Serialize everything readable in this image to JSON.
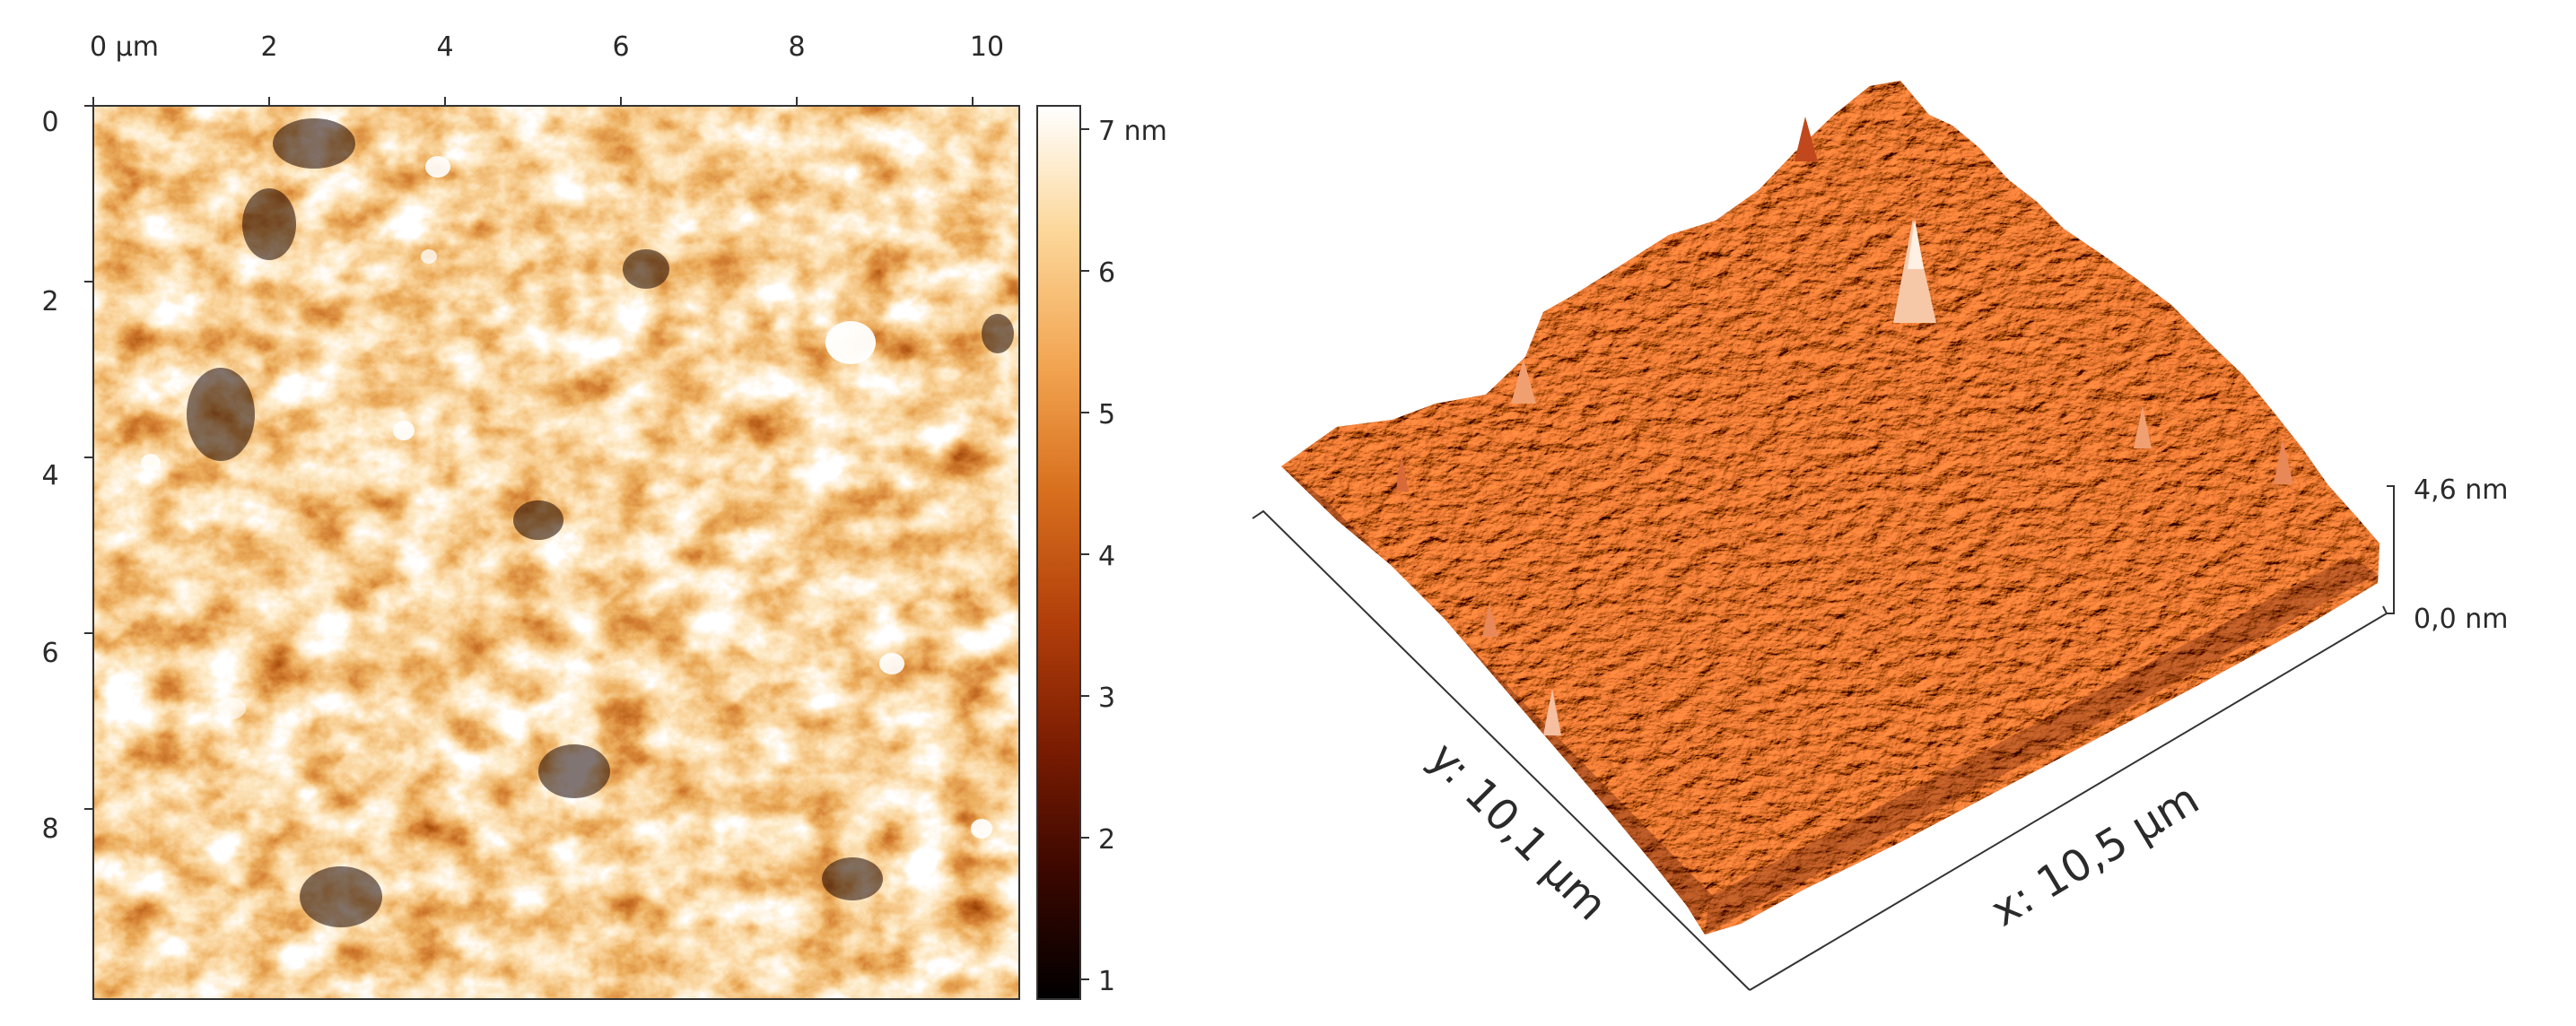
{
  "afm_2d": {
    "x_ticks": [
      "0 µm",
      "2",
      "4",
      "6",
      "8",
      "10"
    ],
    "y_ticks": [
      "0",
      "2",
      "4",
      "6",
      "8"
    ],
    "colorbar_ticks": [
      "7 nm",
      "6",
      "5",
      "4",
      "3",
      "2",
      "1"
    ],
    "colormap": [
      "#000000",
      "#3a0700",
      "#7a1c02",
      "#b13e0a",
      "#d8701e",
      "#f2a552",
      "#fcd79a",
      "#ffffff"
    ]
  },
  "afm_3d": {
    "x_axis_label": "x: 10,5 µm",
    "y_axis_label": "y: 10,1 µm",
    "z_top_label": "4,6 nm",
    "z_bottom_label": "0,0 nm",
    "surface_colors": [
      "#5a1400",
      "#a83208",
      "#d05a18",
      "#e8844a",
      "#f8c6a0"
    ]
  }
}
